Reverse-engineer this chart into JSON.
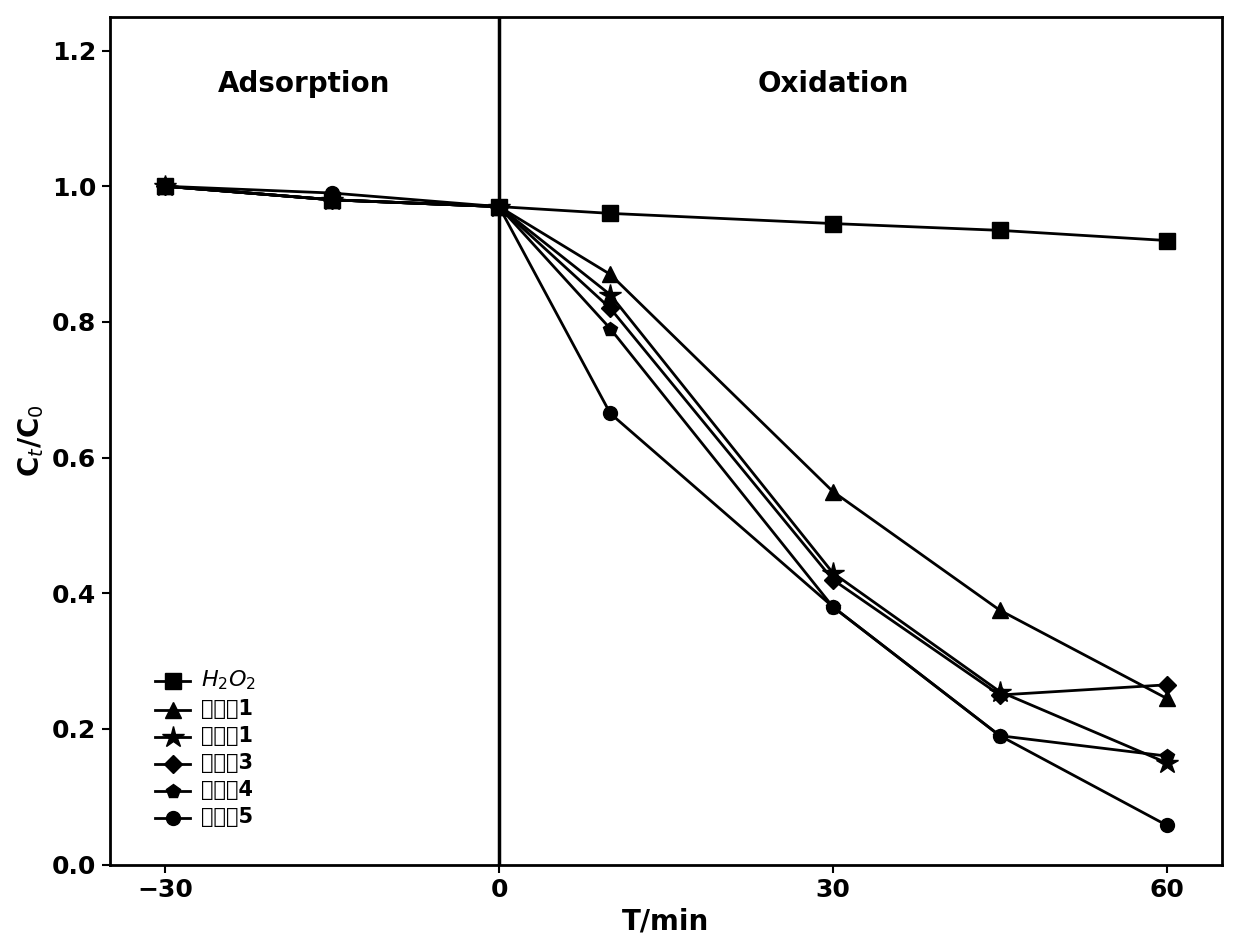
{
  "series": [
    {
      "label": "H$_2$O$_2$",
      "marker": "s",
      "x": [
        -30,
        -15,
        0,
        10,
        30,
        45,
        60
      ],
      "y": [
        1.0,
        0.98,
        0.97,
        0.96,
        0.945,
        0.935,
        0.92
      ]
    },
    {
      "label": "对照例1",
      "marker": "^",
      "x": [
        -30,
        -15,
        0,
        10,
        30,
        45,
        60
      ],
      "y": [
        1.0,
        0.98,
        0.97,
        0.87,
        0.55,
        0.375,
        0.245
      ]
    },
    {
      "label": "实施例1",
      "marker": "*",
      "x": [
        -30,
        -15,
        0,
        10,
        30,
        45,
        60
      ],
      "y": [
        1.0,
        0.98,
        0.97,
        0.84,
        0.43,
        0.255,
        0.15
      ]
    },
    {
      "label": "实施例3",
      "marker": "D",
      "x": [
        -30,
        -15,
        0,
        10,
        30,
        45,
        60
      ],
      "y": [
        1.0,
        0.98,
        0.97,
        0.82,
        0.42,
        0.25,
        0.265
      ]
    },
    {
      "label": "实施例4",
      "marker": "p",
      "x": [
        -30,
        -15,
        0,
        10,
        30,
        45,
        60
      ],
      "y": [
        1.0,
        0.98,
        0.97,
        0.79,
        0.38,
        0.19,
        0.16
      ]
    },
    {
      "label": "实施例5",
      "marker": "o",
      "x": [
        -30,
        -15,
        0,
        10,
        30,
        45,
        60
      ],
      "y": [
        1.0,
        0.99,
        0.97,
        0.665,
        0.38,
        0.19,
        0.058
      ]
    }
  ],
  "xlim": [
    -35,
    65
  ],
  "ylim": [
    0.0,
    1.25
  ],
  "xticks": [
    -30,
    0,
    30,
    60
  ],
  "yticks": [
    0.0,
    0.2,
    0.4,
    0.6,
    0.8,
    1.0,
    1.2
  ],
  "xlabel": "T/min",
  "ylabel": "C$_t$/C$_0$",
  "adsorption_label": "Adsorption",
  "oxidation_label": "Oxidation",
  "vline_x": 0,
  "background_color": "#ffffff",
  "line_color": "#000000",
  "fontsize_labels": 20,
  "fontsize_ticks": 18,
  "fontsize_legend": 15,
  "fontsize_annotation": 20
}
